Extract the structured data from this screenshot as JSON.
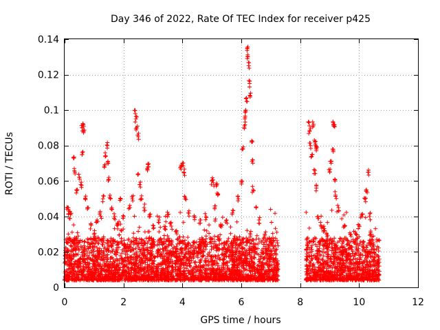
{
  "chart_data": {
    "type": "scatter",
    "title": "Day 346 of 2022, Rate Of TEC Index for receiver p425",
    "xlabel": "GPS time / hours",
    "ylabel": "ROTI / TECUs",
    "xlim": [
      0,
      12
    ],
    "ylim": [
      0,
      0.14
    ],
    "xticks": [
      0,
      2,
      4,
      6,
      8,
      10,
      12
    ],
    "xtick_labels": [
      "0",
      "2",
      "4",
      "6",
      "8",
      "10",
      "12"
    ],
    "yticks": [
      0,
      0.02,
      0.04,
      0.06,
      0.08,
      0.1,
      0.12,
      0.14
    ],
    "ytick_labels": [
      "0",
      "0.02",
      "0.04",
      "0.06",
      "0.08",
      "0.1",
      "0.12",
      "0.14"
    ],
    "grid": true,
    "marker": "+",
    "color": "#ff0000",
    "series": [
      {
        "name": "ROTI",
        "segments": [
          [
            0.0,
            7.25
          ],
          [
            8.2,
            10.7
          ]
        ],
        "points": [
          [
            0.1,
            0.045
          ],
          [
            0.15,
            0.043
          ],
          [
            0.2,
            0.041
          ],
          [
            0.3,
            0.073
          ],
          [
            0.35,
            0.065
          ],
          [
            0.4,
            0.055
          ],
          [
            0.5,
            0.062
          ],
          [
            0.55,
            0.058
          ],
          [
            0.6,
            0.09
          ],
          [
            0.62,
            0.092
          ],
          [
            0.65,
            0.088
          ],
          [
            0.6,
            0.076
          ],
          [
            0.7,
            0.05
          ],
          [
            0.8,
            0.045
          ],
          [
            0.9,
            0.035
          ],
          [
            1.0,
            0.03
          ],
          [
            1.1,
            0.038
          ],
          [
            1.2,
            0.042
          ],
          [
            1.3,
            0.05
          ],
          [
            1.35,
            0.068
          ],
          [
            1.4,
            0.074
          ],
          [
            1.45,
            0.08
          ],
          [
            1.48,
            0.07
          ],
          [
            1.5,
            0.062
          ],
          [
            1.55,
            0.05
          ],
          [
            1.6,
            0.045
          ],
          [
            1.7,
            0.04
          ],
          [
            1.8,
            0.035
          ],
          [
            1.9,
            0.05
          ],
          [
            2.0,
            0.04
          ],
          [
            2.2,
            0.045
          ],
          [
            2.3,
            0.05
          ],
          [
            2.4,
            0.098
          ],
          [
            2.42,
            0.095
          ],
          [
            2.45,
            0.09
          ],
          [
            2.5,
            0.085
          ],
          [
            2.5,
            0.064
          ],
          [
            2.55,
            0.058
          ],
          [
            2.6,
            0.05
          ],
          [
            2.7,
            0.045
          ],
          [
            2.8,
            0.067
          ],
          [
            2.85,
            0.068
          ],
          [
            2.9,
            0.04
          ],
          [
            3.0,
            0.035
          ],
          [
            3.2,
            0.038
          ],
          [
            3.4,
            0.033
          ],
          [
            3.5,
            0.041
          ],
          [
            3.6,
            0.036
          ],
          [
            3.8,
            0.032
          ],
          [
            3.95,
            0.068
          ],
          [
            4.0,
            0.07
          ],
          [
            4.05,
            0.065
          ],
          [
            4.1,
            0.05
          ],
          [
            4.2,
            0.042
          ],
          [
            4.4,
            0.04
          ],
          [
            4.6,
            0.038
          ],
          [
            4.8,
            0.04
          ],
          [
            5.0,
            0.06
          ],
          [
            5.05,
            0.059
          ],
          [
            5.15,
            0.058
          ],
          [
            5.2,
            0.052
          ],
          [
            5.1,
            0.045
          ],
          [
            5.3,
            0.035
          ],
          [
            5.5,
            0.038
          ],
          [
            5.7,
            0.042
          ],
          [
            5.9,
            0.05
          ],
          [
            6.0,
            0.06
          ],
          [
            6.05,
            0.078
          ],
          [
            6.1,
            0.09
          ],
          [
            6.12,
            0.095
          ],
          [
            6.15,
            0.1
          ],
          [
            6.18,
            0.105
          ],
          [
            6.2,
            0.135
          ],
          [
            6.22,
            0.13
          ],
          [
            6.25,
            0.125
          ],
          [
            6.28,
            0.115
          ],
          [
            6.3,
            0.108
          ],
          [
            6.35,
            0.082
          ],
          [
            6.38,
            0.072
          ],
          [
            6.4,
            0.055
          ],
          [
            6.5,
            0.045
          ],
          [
            6.6,
            0.038
          ],
          [
            6.8,
            0.03
          ],
          [
            7.0,
            0.025
          ],
          [
            8.3,
            0.093
          ],
          [
            8.32,
            0.088
          ],
          [
            8.35,
            0.08
          ],
          [
            8.4,
            0.075
          ],
          [
            8.45,
            0.092
          ],
          [
            8.5,
            0.082
          ],
          [
            8.52,
            0.08
          ],
          [
            8.55,
            0.078
          ],
          [
            8.5,
            0.066
          ],
          [
            8.55,
            0.056
          ],
          [
            8.6,
            0.04
          ],
          [
            8.7,
            0.035
          ],
          [
            8.8,
            0.032
          ],
          [
            8.9,
            0.03
          ],
          [
            9.0,
            0.065
          ],
          [
            9.05,
            0.07
          ],
          [
            9.1,
            0.078
          ],
          [
            9.12,
            0.093
          ],
          [
            9.15,
            0.091
          ],
          [
            9.18,
            0.06
          ],
          [
            9.2,
            0.052
          ],
          [
            9.3,
            0.045
          ],
          [
            9.5,
            0.035
          ],
          [
            9.7,
            0.03
          ],
          [
            9.9,
            0.03
          ],
          [
            10.0,
            0.035
          ],
          [
            10.1,
            0.04
          ],
          [
            10.2,
            0.05
          ],
          [
            10.25,
            0.055
          ],
          [
            10.3,
            0.065
          ],
          [
            10.35,
            0.04
          ],
          [
            10.4,
            0.03
          ],
          [
            10.5,
            0.02
          ],
          [
            10.6,
            0.015
          ]
        ]
      }
    ]
  }
}
